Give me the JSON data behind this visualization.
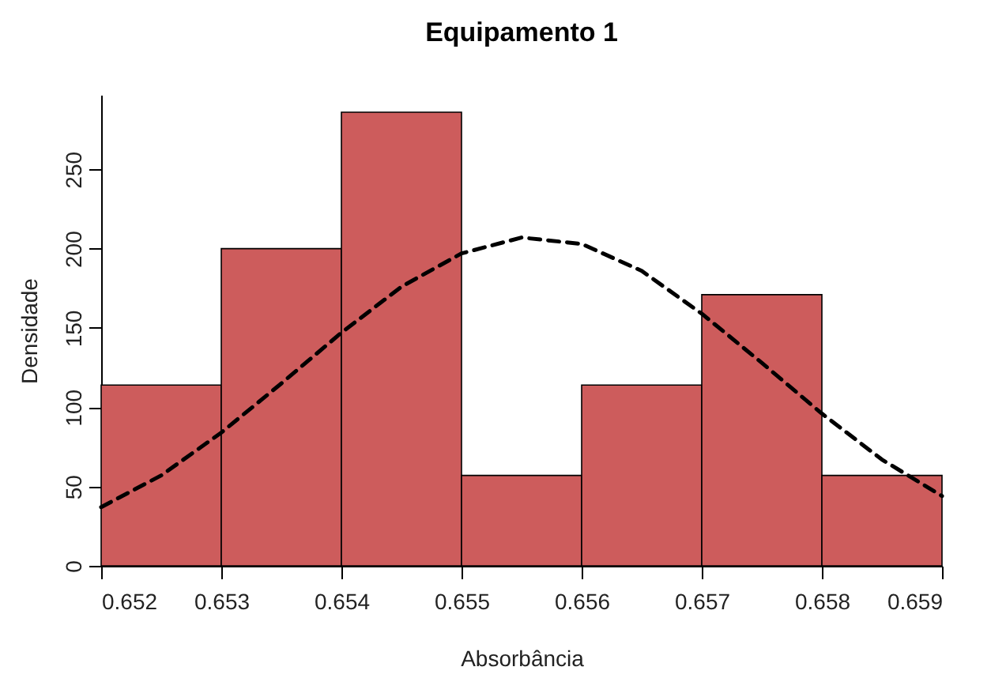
{
  "chart_data": {
    "type": "histogram",
    "title": "Equipamento 1",
    "xlabel": "Absorbância",
    "ylabel": "Densidade",
    "bins": [
      0.652,
      0.653,
      0.654,
      0.655,
      0.656,
      0.657,
      0.658,
      0.659
    ],
    "values": [
      114,
      200,
      286,
      57,
      114,
      171,
      57
    ],
    "color": "#cd5c5c",
    "series": [
      {
        "type": "line",
        "color": "#000000",
        "line_style": "dashed",
        "x": [
          0.652,
          0.6525,
          0.653,
          0.6535,
          0.654,
          0.6545,
          0.655,
          0.6555,
          0.656,
          0.6565,
          0.657,
          0.6575,
          0.658,
          0.6585,
          0.659
        ],
        "values": [
          37,
          57,
          84,
          115,
          147,
          176,
          197,
          207,
          203,
          186,
          159,
          128,
          96,
          67,
          44
        ]
      }
    ],
    "xlim": [
      0.652,
      0.659
    ],
    "xticks": [
      0.652,
      0.653,
      0.654,
      0.655,
      0.656,
      0.657,
      0.658,
      0.659
    ],
    "ylim": [
      0,
      297
    ],
    "yticks": [
      0,
      50,
      100,
      150,
      200,
      250
    ],
    "grid": false
  }
}
